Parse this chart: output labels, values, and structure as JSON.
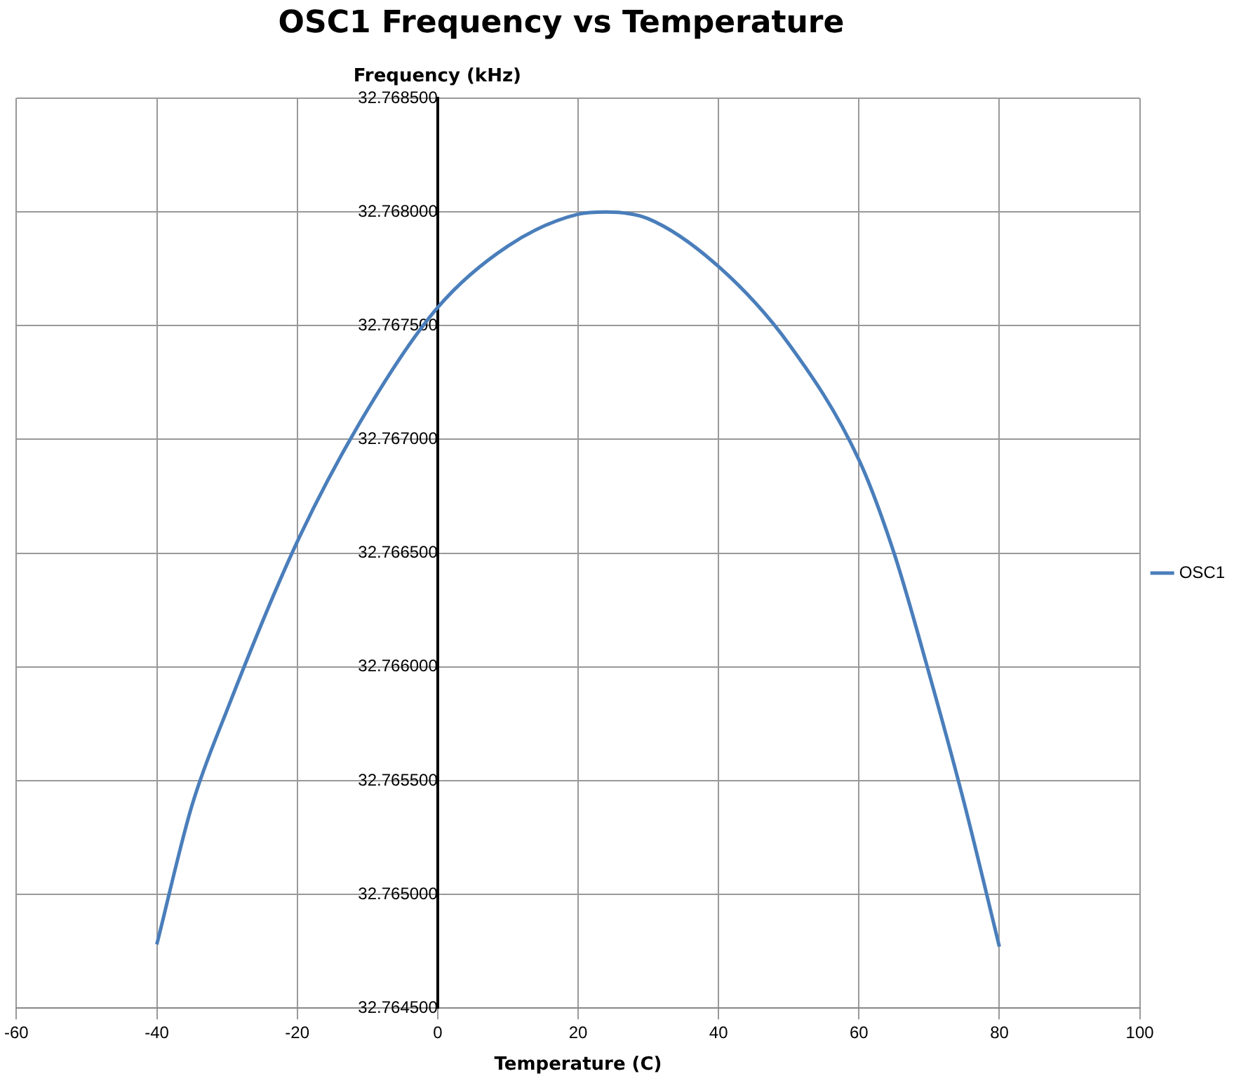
{
  "chart_data": {
    "type": "line",
    "title": "OSC1 Frequency vs Temperature",
    "xlabel": "Temperature (C)",
    "ylabel": "Frequency (kHz)",
    "x": [
      -40,
      -35,
      -30,
      -20,
      -10,
      0,
      10,
      20,
      24,
      30,
      40,
      50,
      60,
      65,
      70,
      75,
      80
    ],
    "series": [
      {
        "name": "OSC1",
        "color": "#4a7ebb",
        "values": [
          32.76478,
          32.76539,
          32.76581,
          32.76655,
          32.76713,
          32.76758,
          32.76785,
          32.76799,
          32.768,
          32.76797,
          32.76776,
          32.76742,
          32.76691,
          32.7665,
          32.76597,
          32.7654,
          32.76477
        ]
      }
    ],
    "xlim": [
      -60,
      100
    ],
    "xticks": [
      -60,
      -40,
      -20,
      0,
      20,
      40,
      60,
      80,
      100
    ],
    "ylim": [
      32.7645,
      32.7685
    ],
    "yticks": [
      {
        "value": 32.7645,
        "label": "32.764500"
      },
      {
        "value": 32.765,
        "label": "32.765000"
      },
      {
        "value": 32.7655,
        "label": "32.765500"
      },
      {
        "value": 32.766,
        "label": "32.766000"
      },
      {
        "value": 32.7665,
        "label": "32.766500"
      },
      {
        "value": 32.767,
        "label": "32.767000"
      },
      {
        "value": 32.7675,
        "label": "32.767500"
      },
      {
        "value": 32.768,
        "label": "32.768000"
      },
      {
        "value": 32.7685,
        "label": "32.768500"
      }
    ],
    "grid": true,
    "legend": "right",
    "marker": "none",
    "line_style": "solid"
  }
}
